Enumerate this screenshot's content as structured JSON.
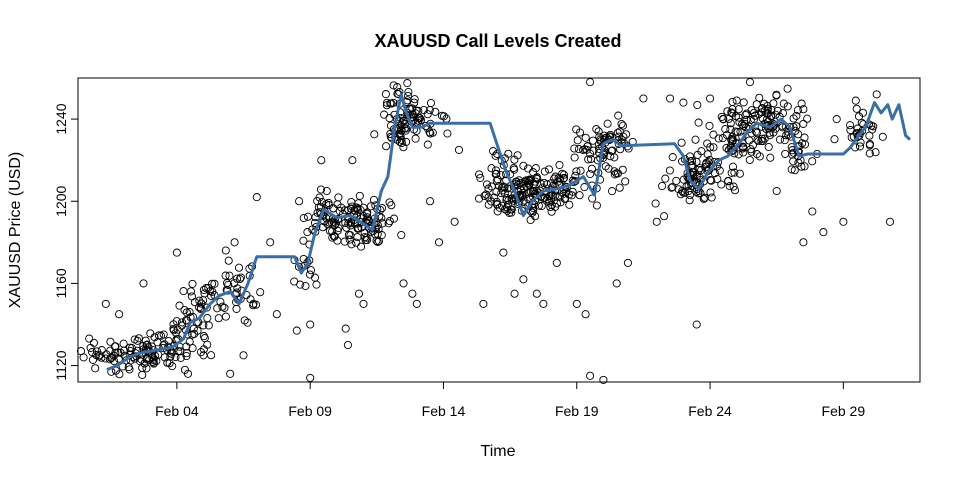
{
  "chart_data": {
    "type": "scatter",
    "title": "XAUUSD Call Levels Created",
    "xlabel": "Time",
    "ylabel": "XAUUSD Price (USD)",
    "x_range": [
      "2016-01-31T07:00",
      "2016-03-02T21:00"
    ],
    "ylim": [
      1112,
      1260
    ],
    "x_ticks": [
      {
        "date": "2016-02-04",
        "label": "Feb 04"
      },
      {
        "date": "2016-02-09",
        "label": "Feb 09"
      },
      {
        "date": "2016-02-14",
        "label": "Feb 14"
      },
      {
        "date": "2016-02-19",
        "label": "Feb 19"
      },
      {
        "date": "2016-02-24",
        "label": "Feb 24"
      },
      {
        "date": "2016-02-29",
        "label": "Feb 29"
      }
    ],
    "y_ticks": [
      1120,
      1160,
      1200,
      1240
    ],
    "grid": false,
    "line_series": {
      "color": "#3a6ea8",
      "points": [
        [
          "2016-02-01T09:00",
          1118
        ],
        [
          "2016-02-01T18:00",
          1120
        ],
        [
          "2016-02-02T05:00",
          1124
        ],
        [
          "2016-02-02T14:00",
          1126
        ],
        [
          "2016-02-03T00:00",
          1127
        ],
        [
          "2016-02-03T10:00",
          1128
        ],
        [
          "2016-02-03T20:00",
          1129
        ],
        [
          "2016-02-04T06:00",
          1133
        ],
        [
          "2016-02-04T12:00",
          1141
        ],
        [
          "2016-02-04T20:00",
          1143
        ],
        [
          "2016-02-05T06:00",
          1150
        ],
        [
          "2016-02-05T14:00",
          1154
        ],
        [
          "2016-02-06T00:00",
          1156
        ],
        [
          "2016-02-06T08:00",
          1150
        ],
        [
          "2016-02-06T16:00",
          1160
        ],
        [
          "2016-02-07T00:00",
          1173
        ],
        [
          "2016-02-08T10:00",
          1173
        ],
        [
          "2016-02-08T16:00",
          1165
        ],
        [
          "2016-02-08T22:00",
          1170
        ],
        [
          "2016-02-09T04:00",
          1184
        ],
        [
          "2016-02-09T12:00",
          1196
        ],
        [
          "2016-02-10T00:00",
          1192
        ],
        [
          "2016-02-10T12:00",
          1193
        ],
        [
          "2016-02-11T00:00",
          1189
        ],
        [
          "2016-02-11T08:00",
          1186
        ],
        [
          "2016-02-11T16:00",
          1205
        ],
        [
          "2016-02-11T22:00",
          1212
        ],
        [
          "2016-02-12T04:00",
          1236
        ],
        [
          "2016-02-12T10:00",
          1252
        ],
        [
          "2016-02-12T14:00",
          1244
        ],
        [
          "2016-02-12T20:00",
          1236
        ],
        [
          "2016-02-13T04:00",
          1236
        ],
        [
          "2016-02-13T12:00",
          1238
        ],
        [
          "2016-02-15T18:00",
          1238
        ],
        [
          "2016-02-16T00:00",
          1228
        ],
        [
          "2016-02-16T08:00",
          1215
        ],
        [
          "2016-02-16T16:00",
          1205
        ],
        [
          "2016-02-17T00:00",
          1193
        ],
        [
          "2016-02-17T08:00",
          1200
        ],
        [
          "2016-02-17T18:00",
          1205
        ],
        [
          "2016-02-18T06:00",
          1206
        ],
        [
          "2016-02-18T18:00",
          1208
        ],
        [
          "2016-02-19T06:00",
          1212
        ],
        [
          "2016-02-19T16:00",
          1203
        ],
        [
          "2016-02-20T00:00",
          1228
        ],
        [
          "2016-02-20T08:00",
          1230
        ],
        [
          "2016-02-20T16:00",
          1227
        ],
        [
          "2016-02-22T16:00",
          1228
        ],
        [
          "2016-02-23T00:00",
          1222
        ],
        [
          "2016-02-23T06:00",
          1210
        ],
        [
          "2016-02-23T14:00",
          1206
        ],
        [
          "2016-02-23T22:00",
          1214
        ],
        [
          "2016-02-24T08:00",
          1220
        ],
        [
          "2016-02-24T16:00",
          1222
        ],
        [
          "2016-02-25T02:00",
          1228
        ],
        [
          "2016-02-25T10:00",
          1234
        ],
        [
          "2016-02-25T18:00",
          1238
        ],
        [
          "2016-02-26T06:00",
          1236
        ],
        [
          "2016-02-26T16:00",
          1240
        ],
        [
          "2016-02-27T00:00",
          1236
        ],
        [
          "2016-02-27T08:00",
          1222
        ],
        [
          "2016-02-27T16:00",
          1223
        ],
        [
          "2016-02-29T00:00",
          1223
        ],
        [
          "2016-02-29T06:00",
          1226
        ],
        [
          "2016-02-29T14:00",
          1232
        ],
        [
          "2016-02-29T20:00",
          1236
        ],
        [
          "2016-03-01T04:00",
          1248
        ],
        [
          "2016-03-01T10:00",
          1243
        ],
        [
          "2016-03-01T16:00",
          1247
        ],
        [
          "2016-03-01T20:00",
          1240
        ],
        [
          "2016-03-02T02:00",
          1247
        ],
        [
          "2016-03-02T08:00",
          1232
        ],
        [
          "2016-03-02T12:00",
          1230
        ]
      ]
    },
    "scatter_clusters": [
      {
        "center": [
          "2016-02-02T00:00",
          1124
        ],
        "spread_days": 0.9,
        "spread_price": 4,
        "count": 60
      },
      {
        "center": [
          "2016-02-03T06:00",
          1128
        ],
        "spread_days": 0.8,
        "spread_price": 4,
        "count": 60
      },
      {
        "center": [
          "2016-02-04T12:00",
          1138
        ],
        "spread_days": 0.5,
        "spread_price": 6,
        "count": 30
      },
      {
        "center": [
          "2016-02-05T12:00",
          1150
        ],
        "spread_days": 0.7,
        "spread_price": 5,
        "count": 40
      },
      {
        "center": [
          "2016-02-06T10:00",
          1158
        ],
        "spread_days": 0.4,
        "spread_price": 7,
        "count": 25
      },
      {
        "center": [
          "2016-02-08T20:00",
          1168
        ],
        "spread_days": 0.3,
        "spread_price": 6,
        "count": 15
      },
      {
        "center": [
          "2016-02-09T16:00",
          1192
        ],
        "spread_days": 0.5,
        "spread_price": 6,
        "count": 45
      },
      {
        "center": [
          "2016-02-10T12:00",
          1190
        ],
        "spread_days": 0.6,
        "spread_price": 6,
        "count": 60
      },
      {
        "center": [
          "2016-02-11T10:00",
          1187
        ],
        "spread_days": 0.4,
        "spread_price": 7,
        "count": 35
      },
      {
        "center": [
          "2016-02-12T08:00",
          1242
        ],
        "spread_days": 0.4,
        "spread_price": 8,
        "count": 50
      },
      {
        "center": [
          "2016-02-13T00:00",
          1238
        ],
        "spread_days": 0.5,
        "spread_price": 5,
        "count": 45
      },
      {
        "center": [
          "2016-02-16T08:00",
          1212
        ],
        "spread_days": 0.4,
        "spread_price": 8,
        "count": 40
      },
      {
        "center": [
          "2016-02-17T00:00",
          1202
        ],
        "spread_days": 0.7,
        "spread_price": 6,
        "count": 80
      },
      {
        "center": [
          "2016-02-18T06:00",
          1206
        ],
        "spread_days": 0.8,
        "spread_price": 6,
        "count": 80
      },
      {
        "center": [
          "2016-02-19T18:00",
          1225
        ],
        "spread_days": 0.7,
        "spread_price": 7,
        "count": 60
      },
      {
        "center": [
          "2016-02-20T12:00",
          1230
        ],
        "spread_days": 0.4,
        "spread_price": 4,
        "count": 20
      },
      {
        "center": [
          "2016-02-23T12:00",
          1208
        ],
        "spread_days": 0.7,
        "spread_price": 6,
        "count": 60
      },
      {
        "center": [
          "2016-02-24T06:00",
          1220
        ],
        "spread_days": 0.6,
        "spread_price": 5,
        "count": 40
      },
      {
        "center": [
          "2016-02-25T06:00",
          1235
        ],
        "spread_days": 0.7,
        "spread_price": 7,
        "count": 80
      },
      {
        "center": [
          "2016-02-26T08:00",
          1240
        ],
        "spread_days": 0.6,
        "spread_price": 6,
        "count": 60
      },
      {
        "center": [
          "2016-02-27T04:00",
          1225
        ],
        "spread_days": 0.3,
        "spread_price": 6,
        "count": 25
      },
      {
        "center": [
          "2016-02-29T18:00",
          1232
        ],
        "spread_days": 0.4,
        "spread_price": 6,
        "count": 30
      }
    ],
    "scatter_outliers": [
      [
        "2016-01-31T12:00",
        1124
      ],
      [
        "2016-02-01T08:00",
        1150
      ],
      [
        "2016-02-01T20:00",
        1145
      ],
      [
        "2016-02-02T18:00",
        1160
      ],
      [
        "2016-02-04T00:00",
        1175
      ],
      [
        "2016-02-04T10:00",
        1116
      ],
      [
        "2016-02-05T00:00",
        1125
      ],
      [
        "2016-02-06T00:00",
        1116
      ],
      [
        "2016-02-06T04:00",
        1180
      ],
      [
        "2016-02-06T12:00",
        1125
      ],
      [
        "2016-02-07T00:00",
        1202
      ],
      [
        "2016-02-07T12:00",
        1180
      ],
      [
        "2016-02-07T18:00",
        1145
      ],
      [
        "2016-02-08T12:00",
        1137
      ],
      [
        "2016-02-08T14:00",
        1200
      ],
      [
        "2016-02-09T00:00",
        1114
      ],
      [
        "2016-02-09T00:00",
        1140
      ],
      [
        "2016-02-09T10:00",
        1220
      ],
      [
        "2016-02-10T08:00",
        1138
      ],
      [
        "2016-02-10T10:00",
        1130
      ],
      [
        "2016-02-10T14:00",
        1220
      ],
      [
        "2016-02-10T20:00",
        1155
      ],
      [
        "2016-02-11T00:00",
        1150
      ],
      [
        "2016-02-12T12:00",
        1160
      ],
      [
        "2016-02-12T20:00",
        1155
      ],
      [
        "2016-02-13T00:00",
        1150
      ],
      [
        "2016-02-13T12:00",
        1200
      ],
      [
        "2016-02-13T20:00",
        1180
      ],
      [
        "2016-02-14T10:00",
        1190
      ],
      [
        "2016-02-14T14:00",
        1225
      ],
      [
        "2016-02-15T00:00",
        1260
      ],
      [
        "2016-02-15T12:00",
        1150
      ],
      [
        "2016-02-16T06:00",
        1175
      ],
      [
        "2016-02-16T16:00",
        1155
      ],
      [
        "2016-02-17T00:00",
        1162
      ],
      [
        "2016-02-17T12:00",
        1155
      ],
      [
        "2016-02-17T18:00",
        1150
      ],
      [
        "2016-02-18T06:00",
        1170
      ],
      [
        "2016-02-19T00:00",
        1150
      ],
      [
        "2016-02-19T08:00",
        1145
      ],
      [
        "2016-02-19T12:00",
        1258
      ],
      [
        "2016-02-19T12:00",
        1115
      ],
      [
        "2016-02-20T00:00",
        1113
      ],
      [
        "2016-02-20T12:00",
        1160
      ],
      [
        "2016-02-20T22:00",
        1170
      ],
      [
        "2016-02-21T12:00",
        1250
      ],
      [
        "2016-02-22T00:00",
        1190
      ],
      [
        "2016-02-22T12:00",
        1250
      ],
      [
        "2016-02-23T00:00",
        1248
      ],
      [
        "2016-02-23T12:00",
        1140
      ],
      [
        "2016-02-24T00:00",
        1250
      ],
      [
        "2016-02-25T12:00",
        1258
      ],
      [
        "2016-02-26T12:00",
        1205
      ],
      [
        "2016-02-27T12:00",
        1180
      ],
      [
        "2016-02-27T20:00",
        1195
      ],
      [
        "2016-02-28T06:00",
        1185
      ],
      [
        "2016-02-28T18:00",
        1240
      ],
      [
        "2016-02-29T00:00",
        1190
      ],
      [
        "2016-02-29T12:00",
        1245
      ],
      [
        "2016-03-01T06:00",
        1252
      ],
      [
        "2016-03-01T18:00",
        1190
      ]
    ]
  }
}
